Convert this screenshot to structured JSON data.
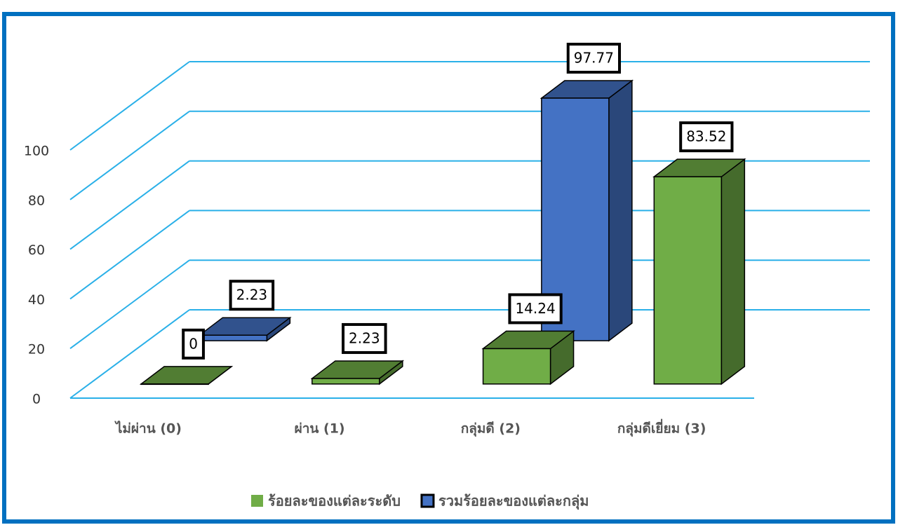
{
  "chart_data": {
    "type": "bar3d",
    "categories": [
      "ไม่ผ่าน (0)",
      "ผ่าน (1)",
      "กลุ่มดี (2)",
      "กลุ่มดีเยี่ยม (3)"
    ],
    "series": [
      {
        "name": "ร้อยละของแต่ละระดับ",
        "color": "#70ad47",
        "values": [
          0,
          2.23,
          14.24,
          83.52
        ]
      },
      {
        "name": "รวมร้อยละของแต่ละกลุ่ม",
        "color": "#4472c4",
        "values": [
          2.23,
          null,
          97.77,
          null
        ]
      }
    ],
    "ylim": [
      0,
      100
    ],
    "yticks": [
      0,
      20,
      40,
      60,
      80,
      100
    ],
    "grid": true,
    "legend": "bottom"
  }
}
